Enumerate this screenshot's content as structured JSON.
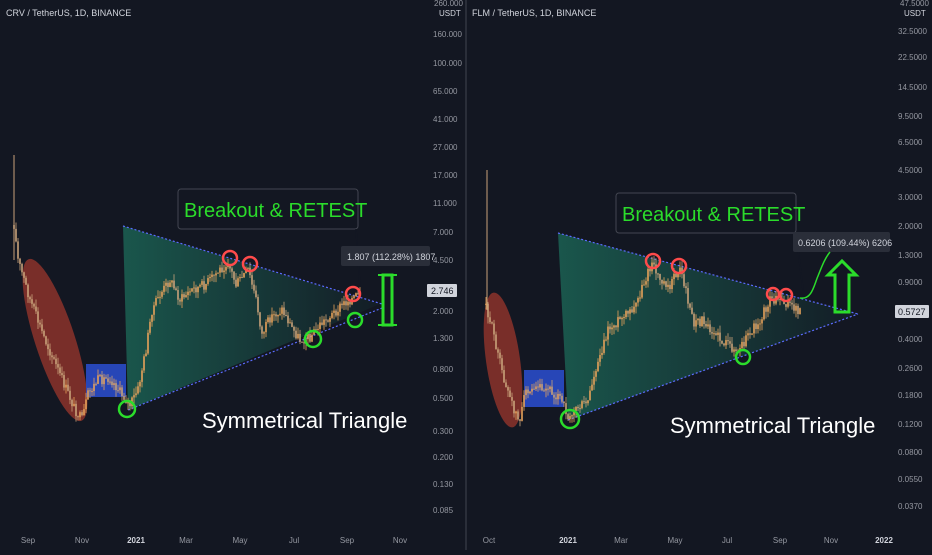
{
  "charts": [
    {
      "symbol_label": "CRV / TetherUS, 1D, BINANCE",
      "axis_unit": "USDT",
      "axis_top_clipped": "260.000",
      "price_ticks": [
        "160.000",
        "100.000",
        "65.000",
        "41.000",
        "27.000",
        "17.000",
        "11.000",
        "7.000",
        "4.500",
        "2.000",
        "1.300",
        "0.800",
        "0.500",
        "0.300",
        "0.200",
        "0.130",
        "0.085"
      ],
      "current_price": "2.746",
      "time_labels": [
        "Sep",
        "Nov",
        "2021",
        "Mar",
        "May",
        "Jul",
        "Sep",
        "Nov"
      ],
      "breakout_text": "Breakout & RETEST",
      "pattern_text": "Symmetrical Triangle",
      "measure_label": "1.807 (112.28%) 1807"
    },
    {
      "symbol_label": "FLM / TetherUS, 1D, BINANCE",
      "axis_unit": "USDT",
      "axis_top_clipped": "47.5000",
      "price_ticks": [
        "32.5000",
        "22.5000",
        "14.5000",
        "9.5000",
        "6.5000",
        "4.5000",
        "3.0000",
        "2.0000",
        "1.3000",
        "0.9000",
        "0.4000",
        "0.2600",
        "0.1800",
        "0.1200",
        "0.0800",
        "0.0550",
        "0.0370"
      ],
      "current_price": "0.5727",
      "time_labels": [
        "Oct",
        "2021",
        "Mar",
        "May",
        "Jul",
        "Sep",
        "Nov",
        "2022"
      ],
      "breakout_text": "Breakout & RETEST",
      "pattern_text": "Symmetrical Triangle",
      "measure_label": "0.6206 (109.44%) 6206"
    }
  ],
  "colors": {
    "background": "#131722",
    "candle": "#e8a25a",
    "triangle_line": "#5b6cff",
    "triangle_fill": "#1f8a6e",
    "peak_circle": "#ff4b4b",
    "trough_circle": "#2bdc2b",
    "breakout_text": "#2bdc2b",
    "pattern_text": "#ffffff",
    "red_zone": "#b03a2e",
    "blue_zone": "#2b4fd1",
    "measure_bar": "#2bdc2b"
  },
  "chart_data": [
    {
      "type": "candlestick",
      "title": "CRV / TetherUS, 1D, BINANCE",
      "y_scale": "log",
      "ylim": [
        0.085,
        160
      ],
      "x": [
        "Sep",
        "Nov",
        "2021",
        "Mar",
        "May",
        "Jul",
        "Sep",
        "Nov"
      ],
      "series": [
        {
          "name": "CRV / TetherUS",
          "approx_path": [
            {
              "t": "Aug",
              "price": 5.5
            },
            {
              "t": "Sep",
              "price": 3.0
            },
            {
              "t": "Oct",
              "price": 0.6
            },
            {
              "t": "Nov",
              "price": 0.33
            },
            {
              "t": "Dec",
              "price": 0.55
            },
            {
              "t": "2021",
              "price": 0.5
            },
            {
              "t": "Feb",
              "price": 2.2
            },
            {
              "t": "Mar",
              "price": 2.7
            },
            {
              "t": "Apr",
              "price": 3.2
            },
            {
              "t": "May",
              "price": 4.4
            },
            {
              "t": "Jun",
              "price": 2.0
            },
            {
              "t": "Jul",
              "price": 1.3
            },
            {
              "t": "Aug",
              "price": 1.9
            },
            {
              "t": "Sep",
              "price": 2.75
            }
          ]
        }
      ],
      "current_price": 2.746,
      "annotations": [
        "Breakout & RETEST",
        "Symmetrical Triangle",
        "1.807 (112.28%) 1807"
      ]
    },
    {
      "type": "candlestick",
      "title": "FLM / TetherUS, 1D, BINANCE",
      "y_scale": "log",
      "ylim": [
        0.037,
        32.5
      ],
      "x": [
        "Oct",
        "2021",
        "Mar",
        "May",
        "Jul",
        "Sep",
        "Nov",
        "2022"
      ],
      "series": [
        {
          "name": "FLM / TetherUS",
          "approx_path": [
            {
              "t": "Sep",
              "price": 0.9
            },
            {
              "t": "Oct",
              "price": 0.25
            },
            {
              "t": "Nov",
              "price": 0.12
            },
            {
              "t": "Dec",
              "price": 0.18
            },
            {
              "t": "2021",
              "price": 0.12
            },
            {
              "t": "Feb",
              "price": 0.4
            },
            {
              "t": "Mar",
              "price": 0.8
            },
            {
              "t": "Apr",
              "price": 1.4
            },
            {
              "t": "May",
              "price": 1.2
            },
            {
              "t": "Jun",
              "price": 0.45
            },
            {
              "t": "Jul",
              "price": 0.32
            },
            {
              "t": "Aug",
              "price": 0.55
            },
            {
              "t": "Sep",
              "price": 0.75
            },
            {
              "t": "Oct",
              "price": 0.57
            }
          ]
        }
      ],
      "current_price": 0.5727,
      "annotations": [
        "Breakout & RETEST",
        "Symmetrical Triangle",
        "0.6206 (109.44%) 6206"
      ]
    }
  ]
}
